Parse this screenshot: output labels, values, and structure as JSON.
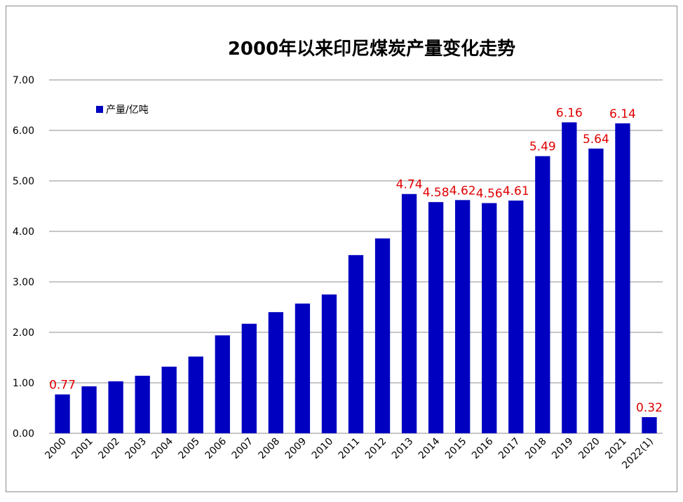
{
  "chart_data": {
    "type": "bar",
    "title": "2000年以来印尼煤炭产量变化走势",
    "xlabel": "",
    "ylabel": "",
    "categories": [
      "2000",
      "2001",
      "2002",
      "2003",
      "2004",
      "2005",
      "2006",
      "2007",
      "2008",
      "2009",
      "2010",
      "2011",
      "2012",
      "2013",
      "2014",
      "2015",
      "2016",
      "2017",
      "2018",
      "2019",
      "2020",
      "2021",
      "2022(1)"
    ],
    "series": [
      {
        "name": "产量/亿吨",
        "color": "#0000C0",
        "values": [
          0.77,
          0.93,
          1.03,
          1.14,
          1.32,
          1.52,
          1.94,
          2.17,
          2.4,
          2.57,
          2.75,
          3.53,
          3.86,
          4.74,
          4.58,
          4.62,
          4.56,
          4.61,
          5.49,
          6.16,
          5.64,
          6.14,
          0.32
        ]
      }
    ],
    "data_labels": [
      {
        "category": "2000",
        "text": "0.77"
      },
      {
        "category": "2013",
        "text": "4.74"
      },
      {
        "category": "2014",
        "text": "4.58"
      },
      {
        "category": "2015",
        "text": "4.62"
      },
      {
        "category": "2016",
        "text": "4.56"
      },
      {
        "category": "2017",
        "text": "4.61"
      },
      {
        "category": "2018",
        "text": "5.49"
      },
      {
        "category": "2019",
        "text": "6.16"
      },
      {
        "category": "2020",
        "text": "5.64"
      },
      {
        "category": "2021",
        "text": "6.14"
      },
      {
        "category": "2022(1)",
        "text": "0.32"
      }
    ],
    "ylim": [
      0,
      7
    ],
    "yticks": [
      "0.00",
      "1.00",
      "2.00",
      "3.00",
      "4.00",
      "5.00",
      "6.00",
      "7.00"
    ],
    "grid": true,
    "legend": "top-left",
    "label_color": "#E00000"
  }
}
